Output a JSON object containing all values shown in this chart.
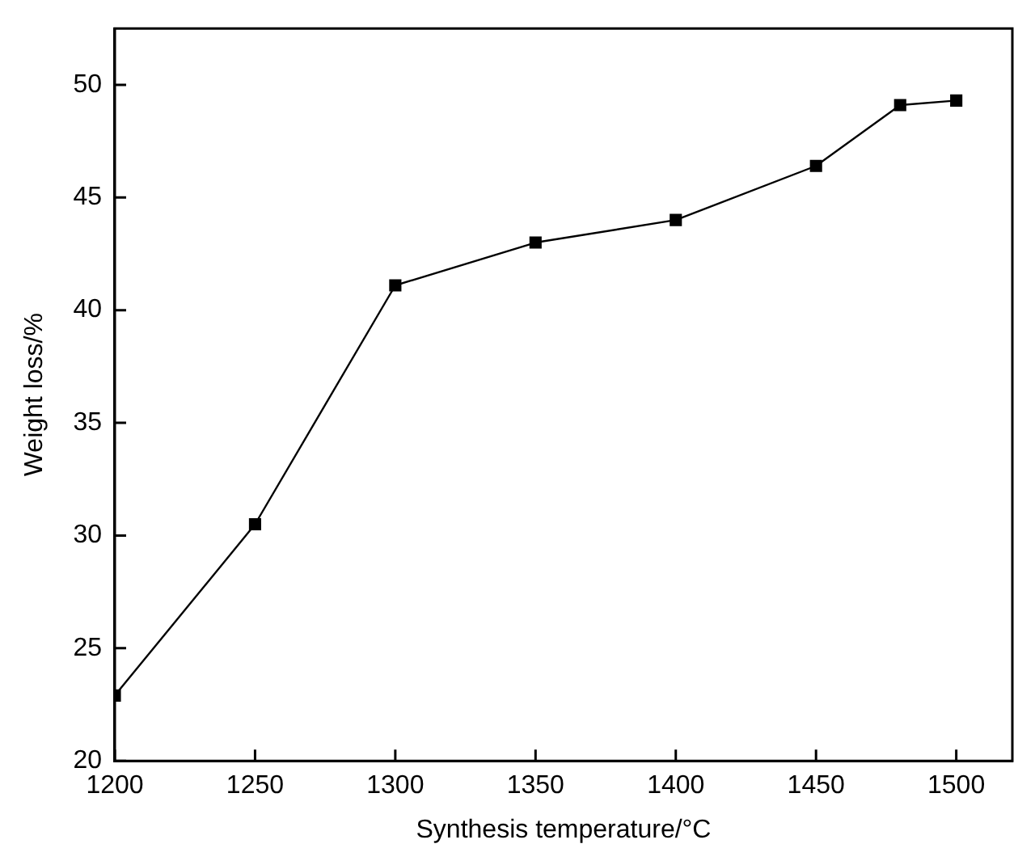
{
  "chart_data": {
    "type": "line",
    "xlabel": "Synthesis temperature/°C",
    "ylabel": "Weight loss/%",
    "x": [
      1200,
      1250,
      1300,
      1350,
      1400,
      1450,
      1480,
      1500
    ],
    "series": [
      {
        "color": "#000000",
        "values": [
          22.9,
          30.5,
          41.1,
          43.0,
          44.0,
          46.4,
          49.1,
          49.3
        ]
      }
    ],
    "xlim": [
      1200,
      1520
    ],
    "xticks": [
      1200,
      1250,
      1300,
      1350,
      1400,
      1450,
      1500
    ],
    "ylim": [
      20,
      52.5
    ],
    "yticks": [
      20,
      25,
      30,
      35,
      40,
      45,
      50
    ],
    "marker": "square",
    "line_style": "solid",
    "legend": false
  }
}
